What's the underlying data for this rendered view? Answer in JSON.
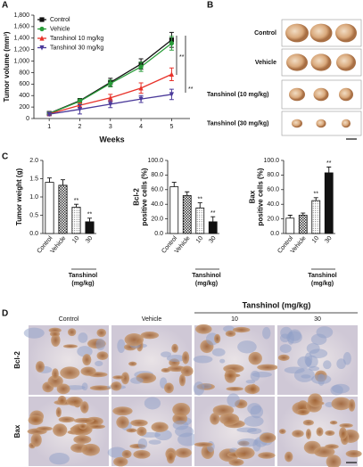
{
  "panel_labels": [
    "A",
    "B",
    "C",
    "D"
  ],
  "chart_data": [
    {
      "type": "line",
      "xlabel": "Weeks",
      "ylabel": "Tumor volume (mm³)",
      "x": [
        1,
        2,
        3,
        4,
        5
      ],
      "xlim": [
        0.5,
        5.6
      ],
      "xticks": [
        1,
        2,
        3,
        4,
        5
      ],
      "ylim": [
        0,
        1800
      ],
      "yticks": [
        0,
        200,
        400,
        600,
        800,
        {
          "value": 1000,
          "label": "1,000"
        },
        {
          "value": 1200,
          "label": "1,200"
        },
        {
          "value": 1400,
          "label": "1,400"
        },
        {
          "value": 1600,
          "label": "1,600"
        },
        {
          "value": 1800,
          "label": "1,800"
        }
      ],
      "series": [
        {
          "name": "Control",
          "color": "#111111",
          "marker": "square",
          "values": [
            90,
            310,
            630,
            950,
            1370
          ],
          "errors": [
            30,
            40,
            70,
            90,
            130
          ]
        },
        {
          "name": "Vehicle",
          "color": "#2a9d3a",
          "marker": "circle",
          "values": [
            85,
            300,
            610,
            900,
            1310
          ],
          "errors": [
            30,
            40,
            60,
            80,
            120
          ]
        },
        {
          "name": "Tanshinol 10 mg/kg",
          "color": "#e8322a",
          "marker": "triangle",
          "values": [
            80,
            230,
            360,
            530,
            770
          ],
          "errors": [
            25,
            40,
            60,
            90,
            110
          ]
        },
        {
          "name": "Tanshinol 30 mg/kg",
          "color": "#4b3a9a",
          "marker": "triangle-down",
          "values": [
            75,
            160,
            250,
            340,
            420
          ],
          "errors": [
            25,
            80,
            60,
            60,
            90
          ]
        }
      ],
      "annotations": [
        "**",
        "**"
      ]
    },
    {
      "type": "bar",
      "ylabel": [
        "Tumor weight (g)"
      ],
      "categories": [
        "Control",
        "Vehicle",
        "10",
        "30"
      ],
      "group_label": [
        "Tanshinol",
        "(mg/kg)"
      ],
      "values": [
        1.4,
        1.32,
        0.72,
        0.32
      ],
      "errors": [
        0.12,
        0.15,
        0.08,
        0.1
      ],
      "ylim": [
        0,
        2
      ],
      "yticks": [
        {
          "value": 0,
          "label": "0.0"
        },
        0.5,
        {
          "value": 1,
          "label": "1.0"
        },
        1.5,
        {
          "value": 2,
          "label": "2.0"
        }
      ],
      "bar_styles": [
        "white",
        "checker",
        "dots",
        "black"
      ],
      "value_labels": [
        null,
        null,
        "**",
        "**"
      ]
    },
    {
      "type": "bar",
      "ylabel": [
        "Bcl-2",
        "positive cells (%)"
      ],
      "categories": [
        "Control",
        "Vehicle",
        "10",
        "30"
      ],
      "group_label": [
        "Tanshinol",
        "(mg/kg)"
      ],
      "values": [
        64,
        52,
        35,
        16
      ],
      "errors": [
        6,
        5,
        7,
        7
      ],
      "ylim": [
        0,
        100
      ],
      "yticks": [
        {
          "value": 0,
          "label": "0.0"
        },
        {
          "value": 20,
          "label": "20.0"
        },
        {
          "value": 40,
          "label": "40.0"
        },
        {
          "value": 60,
          "label": "60.0"
        },
        {
          "value": 80,
          "label": "80.0"
        },
        {
          "value": 100,
          "label": "100.0"
        }
      ],
      "bar_styles": [
        "white",
        "checker",
        "dots",
        "black"
      ],
      "value_labels": [
        null,
        null,
        "**",
        "**"
      ]
    },
    {
      "type": "bar",
      "ylabel": [
        "Bax",
        "positive cells (%)"
      ],
      "categories": [
        "Control",
        "Vehicle",
        "10",
        "30"
      ],
      "group_label": [
        "Tanshinol",
        "(mg/kg)"
      ],
      "values": [
        21,
        25,
        45,
        83
      ],
      "errors": [
        4,
        3,
        4,
        8
      ],
      "ylim": [
        0,
        100
      ],
      "yticks": [
        {
          "value": 0,
          "label": "0.0"
        },
        {
          "value": 20,
          "label": "20.0"
        },
        {
          "value": 40,
          "label": "40.0"
        },
        {
          "value": 60,
          "label": "60.0"
        },
        {
          "value": 80,
          "label": "80.0"
        },
        {
          "value": 100,
          "label": "100.0"
        }
      ],
      "bar_styles": [
        "white",
        "checker",
        "dots",
        "black"
      ],
      "value_labels": [
        null,
        null,
        "**",
        "**"
      ]
    }
  ],
  "photos": {
    "rows": [
      "Control",
      "Vehicle",
      "Tanshinol (10 mg/kg)",
      "Tanshinol (30 mg/kg)"
    ]
  },
  "micrographs": {
    "group": "Tanshinol (mg/kg)",
    "columns": [
      "Control",
      "Vehicle",
      "10",
      "30"
    ],
    "rows": [
      "Bcl-2",
      "Bax"
    ]
  }
}
